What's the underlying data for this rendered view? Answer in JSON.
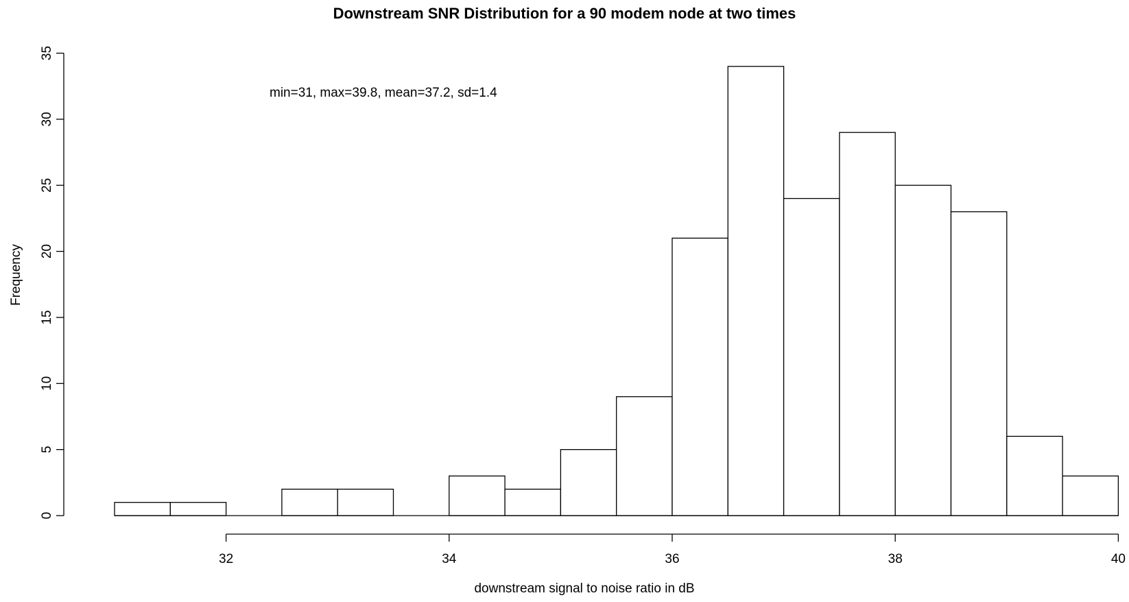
{
  "chart_data": {
    "type": "bar",
    "title": "Downstream SNR Distribution for a 90 modem node at two times",
    "xlabel": "downstream signal to noise ratio in dB",
    "ylabel": "Frequency",
    "annotation": "min=31, max=39.8, mean=37.2, sd=1.4",
    "bin_width": 0.5,
    "bins": [
      {
        "start": 31.0,
        "end": 31.5,
        "count": 1
      },
      {
        "start": 31.5,
        "end": 32.0,
        "count": 1
      },
      {
        "start": 32.0,
        "end": 32.5,
        "count": 0
      },
      {
        "start": 32.5,
        "end": 33.0,
        "count": 2
      },
      {
        "start": 33.0,
        "end": 33.5,
        "count": 2
      },
      {
        "start": 33.5,
        "end": 34.0,
        "count": 0
      },
      {
        "start": 34.0,
        "end": 34.5,
        "count": 3
      },
      {
        "start": 34.5,
        "end": 35.0,
        "count": 2
      },
      {
        "start": 35.0,
        "end": 35.5,
        "count": 5
      },
      {
        "start": 35.5,
        "end": 36.0,
        "count": 9
      },
      {
        "start": 36.0,
        "end": 36.5,
        "count": 21
      },
      {
        "start": 36.5,
        "end": 37.0,
        "count": 34
      },
      {
        "start": 37.0,
        "end": 37.5,
        "count": 24
      },
      {
        "start": 37.5,
        "end": 38.0,
        "count": 29
      },
      {
        "start": 38.0,
        "end": 38.5,
        "count": 25
      },
      {
        "start": 38.5,
        "end": 39.0,
        "count": 23
      },
      {
        "start": 39.0,
        "end": 39.5,
        "count": 6
      },
      {
        "start": 39.5,
        "end": 40.0,
        "count": 3
      }
    ],
    "x_ticks": [
      32,
      34,
      36,
      38,
      40
    ],
    "y_ticks": [
      0,
      5,
      10,
      15,
      20,
      25,
      30,
      35
    ],
    "xlim": [
      31,
      40
    ],
    "ylim": [
      0,
      35
    ],
    "grid": false,
    "bar_fill": "#ffffff",
    "bar_stroke": "#000000"
  }
}
